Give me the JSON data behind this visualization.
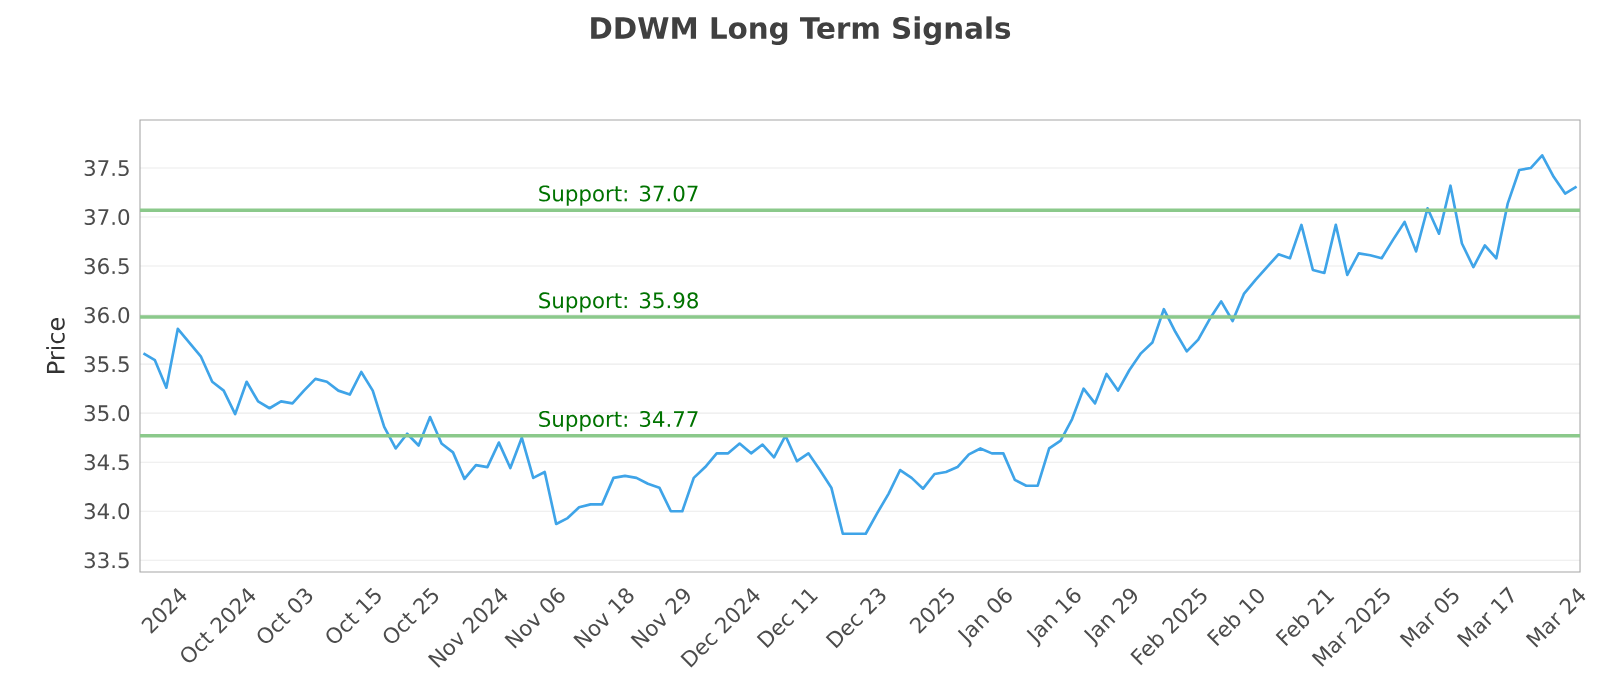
{
  "chart_data": {
    "type": "line",
    "title": "DDWM Long Term Signals",
    "ylabel": "Price",
    "categories": [
      null,
      null,
      null,
      "2024",
      null,
      null,
      null,
      null,
      null,
      "Oct 2024",
      null,
      null,
      null,
      null,
      "Oct 03",
      null,
      null,
      null,
      null,
      null,
      "Oct 15",
      null,
      null,
      null,
      null,
      "Oct 25",
      null,
      null,
      null,
      null,
      null,
      "Nov 2024",
      null,
      null,
      null,
      null,
      "Nov 06",
      null,
      null,
      null,
      null,
      null,
      "Nov 18",
      null,
      null,
      null,
      null,
      "Nov 29",
      null,
      null,
      null,
      null,
      null,
      "Dec 2024",
      null,
      null,
      null,
      null,
      "Dec 11",
      null,
      null,
      null,
      null,
      null,
      "Dec 23",
      null,
      null,
      null,
      null,
      null,
      "2025",
      null,
      null,
      null,
      null,
      "Jan 06",
      null,
      null,
      null,
      null,
      null,
      "Jan 16",
      null,
      null,
      null,
      null,
      "Jan 29",
      null,
      null,
      null,
      null,
      null,
      "Feb 2025",
      null,
      null,
      null,
      null,
      "Feb 10",
      null,
      null,
      null,
      null,
      null,
      "Feb 21",
      null,
      null,
      null,
      null,
      "Mar 2025",
      null,
      null,
      null,
      null,
      null,
      "Mar 05",
      null,
      null,
      null,
      null,
      "Mar 17",
      null,
      null,
      null,
      null,
      null,
      "Mar 24"
    ],
    "series": [
      {
        "color": "#3fa4e8",
        "values": [
          35.61,
          35.54,
          35.26,
          35.86,
          35.72,
          35.58,
          35.32,
          35.23,
          34.99,
          35.32,
          35.12,
          35.05,
          35.12,
          35.1,
          35.23,
          35.35,
          35.32,
          35.23,
          35.19,
          35.42,
          35.23,
          34.86,
          34.64,
          34.79,
          34.67,
          34.96,
          34.69,
          34.6,
          34.33,
          34.47,
          34.45,
          34.7,
          34.44,
          34.75,
          34.34,
          34.4,
          33.87,
          33.93,
          34.04,
          34.07,
          34.07,
          34.34,
          34.36,
          34.34,
          34.28,
          34.24,
          34.0,
          34.0,
          34.34,
          34.45,
          34.59,
          34.59,
          34.69,
          34.59,
          34.68,
          34.55,
          34.77,
          34.51,
          34.59,
          34.42,
          34.24,
          33.77,
          33.77,
          33.77,
          33.98,
          34.18,
          34.42,
          34.34,
          34.23,
          34.38,
          34.4,
          34.45,
          34.58,
          34.64,
          34.59,
          34.59,
          34.32,
          34.26,
          34.26,
          34.64,
          34.72,
          34.94,
          35.25,
          35.1,
          35.4,
          35.23,
          35.44,
          35.61,
          35.72,
          36.06,
          35.83,
          35.63,
          35.75,
          35.96,
          36.14,
          35.94,
          36.22,
          36.36,
          36.49,
          36.62,
          36.58,
          36.92,
          36.46,
          36.43,
          36.92,
          36.41,
          36.63,
          36.61,
          36.58,
          36.77,
          36.95,
          36.65,
          37.09,
          36.83,
          37.32,
          36.73,
          36.49,
          36.71,
          36.58,
          37.14,
          37.48,
          37.5,
          37.63,
          37.41,
          37.24,
          37.31
        ]
      }
    ],
    "ylim": [
      33.38,
      37.99
    ],
    "yticks": [
      33.5,
      {
        "value": 34,
        "label": "34.0"
      },
      34.5,
      {
        "value": 35,
        "label": "35.0"
      },
      35.5,
      {
        "value": 36,
        "label": "36.0"
      },
      36.5,
      {
        "value": 37,
        "label": "37.0"
      },
      37.5
    ],
    "ref_lines": [
      {
        "axis": "y",
        "value": 37.07,
        "label": "Support: 37.07",
        "color": "#8bc98b"
      },
      {
        "axis": "y",
        "value": 35.98,
        "label": "Support: 35.98",
        "color": "#8bc98b"
      },
      {
        "axis": "y",
        "value": 34.77,
        "label": "Support: 34.77",
        "color": "#8bc98b"
      }
    ],
    "grid": "y"
  }
}
